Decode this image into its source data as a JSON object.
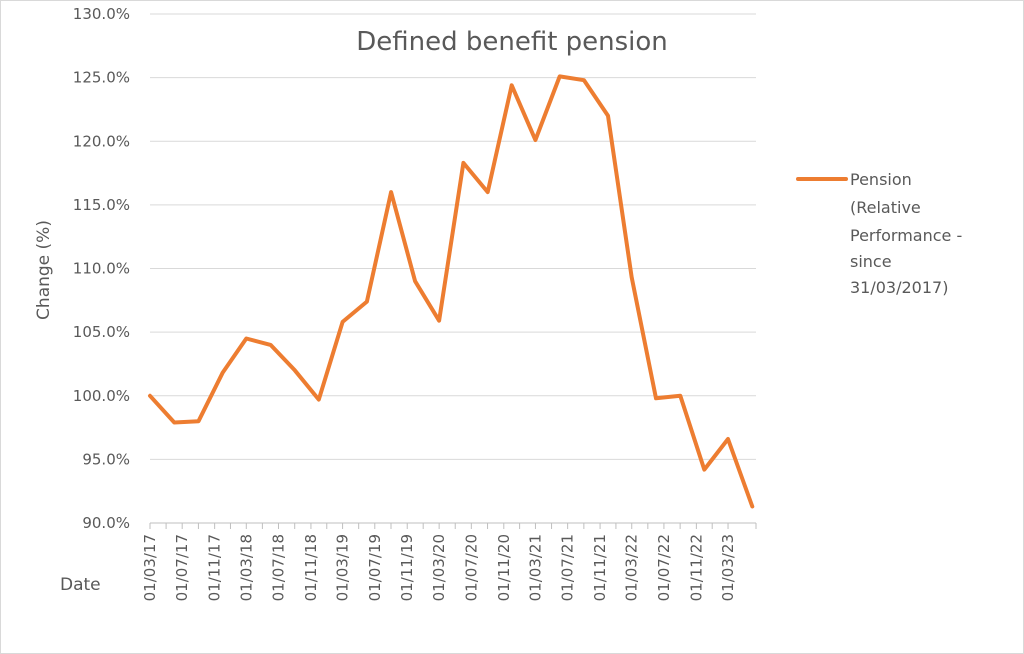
{
  "chart_data": {
    "type": "line",
    "title": "Defined benefit pension",
    "xlabel": "Date",
    "ylabel": "Change (%)",
    "ylim": [
      90,
      130
    ],
    "y_ticks": [
      "90.0%",
      "95.0%",
      "100.0%",
      "105.0%",
      "110.0%",
      "115.0%",
      "120.0%",
      "125.0%",
      "130.0%"
    ],
    "x_ticks": [
      "01/03/17",
      "01/07/17",
      "01/11/17",
      "01/03/18",
      "01/07/18",
      "01/11/18",
      "01/03/19",
      "01/07/19",
      "01/11/19",
      "01/03/20",
      "01/07/20",
      "01/11/20",
      "01/03/21",
      "01/07/21",
      "01/11/21",
      "01/03/22",
      "01/07/22",
      "01/11/22",
      "01/03/23"
    ],
    "x_range": [
      "2017-03-01",
      "2023-06-15"
    ],
    "grid": true,
    "legend_position": "right",
    "series": [
      {
        "name_lines": [
          "Pension",
          "(Relative",
          "Performance -",
          "since",
          "31/03/2017)"
        ],
        "color": "#ed7d31",
        "points": [
          {
            "x": "2017-03-01",
            "y": 100.0
          },
          {
            "x": "2017-06-01",
            "y": 97.9
          },
          {
            "x": "2017-09-01",
            "y": 98.0
          },
          {
            "x": "2017-12-01",
            "y": 101.8
          },
          {
            "x": "2018-03-01",
            "y": 104.5
          },
          {
            "x": "2018-06-01",
            "y": 104.0
          },
          {
            "x": "2018-09-01",
            "y": 102.0
          },
          {
            "x": "2018-12-01",
            "y": 99.7
          },
          {
            "x": "2019-03-01",
            "y": 105.8
          },
          {
            "x": "2019-06-01",
            "y": 107.4
          },
          {
            "x": "2019-09-01",
            "y": 116.0
          },
          {
            "x": "2019-12-01",
            "y": 109.0
          },
          {
            "x": "2020-03-01",
            "y": 105.9
          },
          {
            "x": "2020-06-01",
            "y": 118.3
          },
          {
            "x": "2020-09-01",
            "y": 116.0
          },
          {
            "x": "2020-12-01",
            "y": 124.4
          },
          {
            "x": "2021-03-01",
            "y": 120.1
          },
          {
            "x": "2021-06-01",
            "y": 125.1
          },
          {
            "x": "2021-09-01",
            "y": 124.8
          },
          {
            "x": "2021-12-01",
            "y": 122.0
          },
          {
            "x": "2022-03-01",
            "y": 109.3
          },
          {
            "x": "2022-06-01",
            "y": 99.8
          },
          {
            "x": "2022-09-01",
            "y": 100.0
          },
          {
            "x": "2022-12-01",
            "y": 94.2
          },
          {
            "x": "2023-03-01",
            "y": 96.6
          },
          {
            "x": "2023-06-01",
            "y": 91.3
          }
        ]
      }
    ]
  }
}
